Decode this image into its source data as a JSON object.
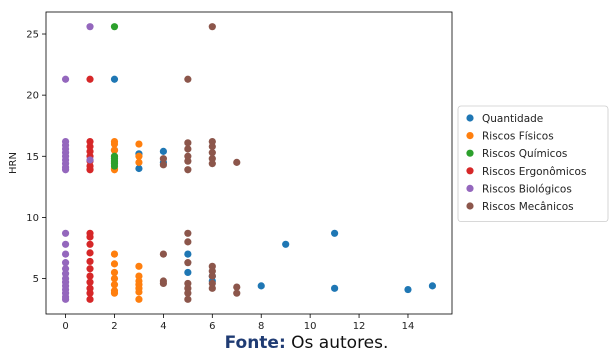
{
  "chart_data": {
    "type": "scatter",
    "ylabel": "HRN",
    "xlabel": "",
    "xlim": [
      -0.8,
      15.8
    ],
    "ylim": [
      2.1,
      26.8
    ],
    "x_ticks": [
      0,
      2,
      4,
      6,
      8,
      10,
      12,
      14
    ],
    "y_ticks": [
      5,
      10,
      15,
      20,
      25
    ],
    "grid": false,
    "legend_position": "right-outside",
    "series": [
      {
        "name": "Quantidade",
        "color": "#1f77b4",
        "points": [
          [
            2,
            15.5
          ],
          [
            2,
            21.3
          ],
          [
            3,
            14
          ],
          [
            3,
            15.2
          ],
          [
            4,
            15.4
          ],
          [
            4,
            14.5
          ],
          [
            5,
            7
          ],
          [
            5,
            5.5
          ],
          [
            6,
            4.8
          ],
          [
            6,
            5.2
          ],
          [
            8,
            4.4
          ],
          [
            9,
            7.8
          ],
          [
            11,
            8.7
          ],
          [
            11,
            4.2
          ],
          [
            14,
            4.1
          ],
          [
            15,
            4.4
          ]
        ]
      },
      {
        "name": "Riscos Físicos",
        "color": "#ff7f0e",
        "points": [
          [
            2,
            16.2
          ],
          [
            2,
            16
          ],
          [
            2,
            15.5
          ],
          [
            2,
            15
          ],
          [
            2,
            14.5
          ],
          [
            2,
            14
          ],
          [
            2,
            13.9
          ],
          [
            2,
            7
          ],
          [
            2,
            6.2
          ],
          [
            2,
            5.5
          ],
          [
            2,
            5
          ],
          [
            2,
            4.5
          ],
          [
            2,
            4
          ],
          [
            2,
            3.8
          ],
          [
            3,
            16
          ],
          [
            3,
            15
          ],
          [
            3,
            14.5
          ],
          [
            3,
            6
          ],
          [
            3,
            5.2
          ],
          [
            3,
            4.8
          ],
          [
            3,
            4.5
          ],
          [
            3,
            4.2
          ],
          [
            3,
            3.9
          ],
          [
            3,
            3.3
          ]
        ]
      },
      {
        "name": "Riscos Químicos",
        "color": "#2ca02c",
        "points": [
          [
            2,
            25.6
          ],
          [
            2,
            15
          ],
          [
            2,
            14.8
          ],
          [
            2,
            14.6
          ],
          [
            2,
            14.4
          ],
          [
            2,
            14.2
          ]
        ]
      },
      {
        "name": "Riscos Ergonômicos",
        "color": "#d62728",
        "points": [
          [
            1,
            21.3
          ],
          [
            1,
            16.2
          ],
          [
            1,
            15.8
          ],
          [
            1,
            15.4
          ],
          [
            1,
            15
          ],
          [
            1,
            14.6
          ],
          [
            1,
            14.2
          ],
          [
            1,
            13.9
          ],
          [
            1,
            8.7
          ],
          [
            1,
            8.4
          ],
          [
            1,
            7.8
          ],
          [
            1,
            7.1
          ],
          [
            1,
            6.4
          ],
          [
            1,
            5.8
          ],
          [
            1,
            5.2
          ],
          [
            1,
            4.7
          ],
          [
            1,
            4.2
          ],
          [
            1,
            3.8
          ],
          [
            1,
            3.3
          ]
        ]
      },
      {
        "name": "Riscos Biológicos",
        "color": "#9467bd",
        "points": [
          [
            0,
            21.3
          ],
          [
            0,
            16.2
          ],
          [
            0,
            15.9
          ],
          [
            0,
            15.6
          ],
          [
            0,
            15.3
          ],
          [
            0,
            15
          ],
          [
            0,
            14.7
          ],
          [
            0,
            14.4
          ],
          [
            0,
            14.1
          ],
          [
            0,
            13.9
          ],
          [
            0,
            8.7
          ],
          [
            0,
            7.8
          ],
          [
            0,
            7
          ],
          [
            0,
            6.3
          ],
          [
            0,
            5.8
          ],
          [
            0,
            5.4
          ],
          [
            0,
            5
          ],
          [
            0,
            4.7
          ],
          [
            0,
            4.4
          ],
          [
            0,
            4.1
          ],
          [
            0,
            3.8
          ],
          [
            0,
            3.5
          ],
          [
            0,
            3.3
          ],
          [
            1,
            25.6
          ],
          [
            1,
            14.7
          ]
        ]
      },
      {
        "name": "Riscos Mecânicos",
        "color": "#8c564b",
        "points": [
          [
            4,
            7
          ],
          [
            4,
            4.8
          ],
          [
            4,
            4.6
          ],
          [
            4,
            14.8
          ],
          [
            4,
            14.3
          ],
          [
            5,
            21.3
          ],
          [
            5,
            16.1
          ],
          [
            5,
            15.6
          ],
          [
            5,
            15
          ],
          [
            5,
            14.6
          ],
          [
            5,
            13.9
          ],
          [
            5,
            8.7
          ],
          [
            5,
            8
          ],
          [
            5,
            6.3
          ],
          [
            5,
            4.6
          ],
          [
            5,
            4.2
          ],
          [
            5,
            3.8
          ],
          [
            5,
            3.3
          ],
          [
            6,
            25.6
          ],
          [
            6,
            16.2
          ],
          [
            6,
            15.8
          ],
          [
            6,
            15.3
          ],
          [
            6,
            14.8
          ],
          [
            6,
            14.4
          ],
          [
            6,
            6
          ],
          [
            6,
            5.6
          ],
          [
            6,
            5.2
          ],
          [
            6,
            4.6
          ],
          [
            6,
            4.2
          ],
          [
            7,
            14.5
          ],
          [
            7,
            4.3
          ],
          [
            7,
            3.8
          ]
        ]
      }
    ]
  },
  "caption": {
    "label": "Fonte:",
    "text": " Os autores."
  }
}
